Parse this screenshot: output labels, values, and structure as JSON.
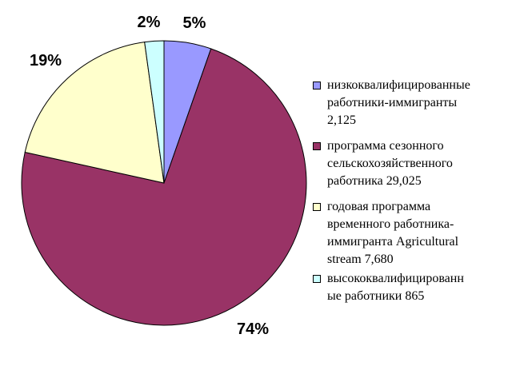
{
  "chart_data": {
    "type": "pie",
    "categories": [
      "низкоквалифицированные работники-иммигранты 2,125",
      "программа сезонного сельскохозяйственного работника 29,025",
      "годовая программа временного работника-иммигранта  Agricultural stream 7,680",
      "высококвалифицированные работники 865"
    ],
    "legend_lines": [
      [
        "низкоквалифицированные",
        "работники-иммигранты",
        "2,125"
      ],
      [
        "программа сезонного",
        "сельскохозяйственного",
        "работника 29,025"
      ],
      [
        "годовая программа",
        "временного работника-",
        "иммигранта  Agricultural",
        "stream 7,680"
      ],
      [
        "высококвалифицированн",
        "ые работники 865"
      ]
    ],
    "values": [
      2125,
      29025,
      7680,
      865
    ],
    "percent_labels": [
      "5%",
      "74%",
      "19%",
      "2%"
    ],
    "colors": [
      "#9999ff",
      "#993366",
      "#ffffcc",
      "#ccffff"
    ],
    "start_angle_deg": 0,
    "direction": "clockwise",
    "legend_position": "right"
  }
}
